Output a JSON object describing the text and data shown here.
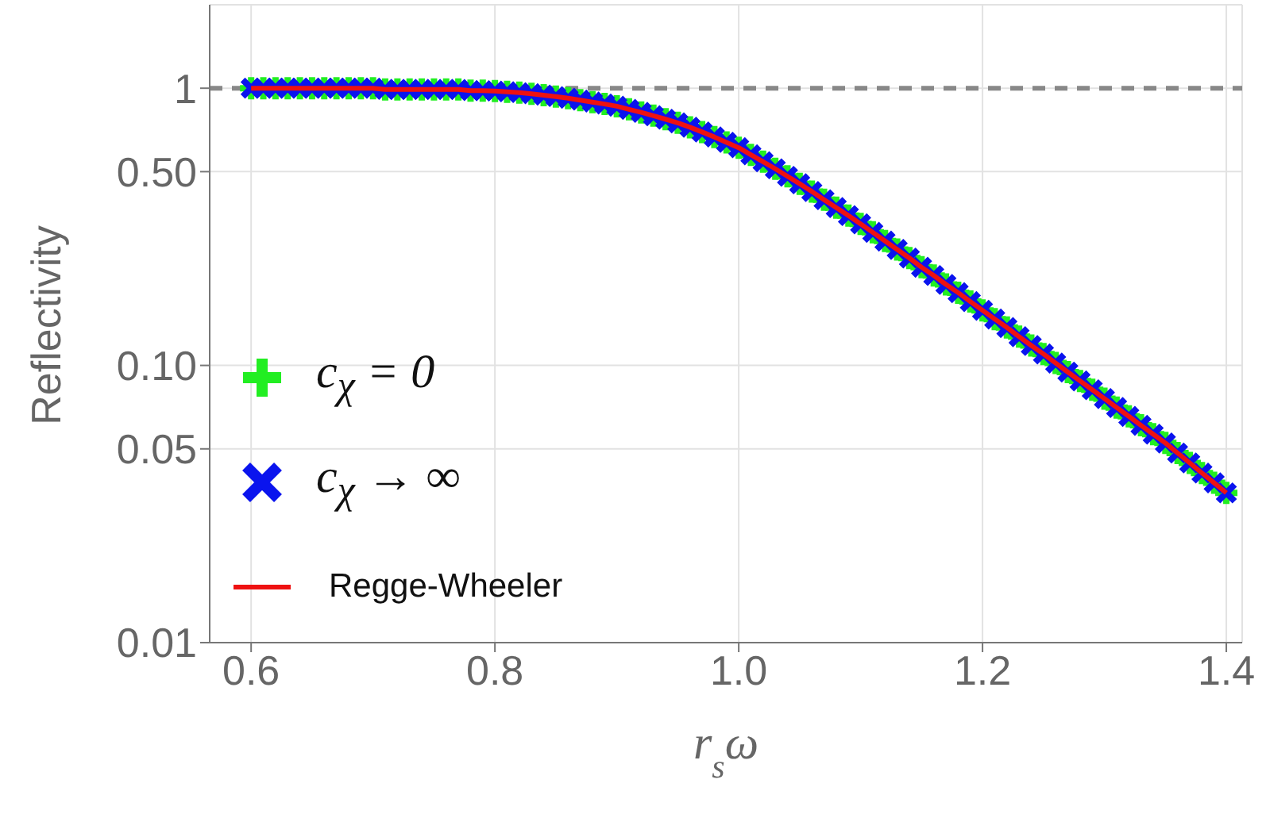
{
  "chart_data": {
    "type": "line",
    "xlabel": "r$_{s}$ω",
    "ylabel": "Reflectivity",
    "x": [
      0.6,
      0.61,
      0.62,
      0.63,
      0.64,
      0.65,
      0.66,
      0.67,
      0.68,
      0.69,
      0.7,
      0.71,
      0.72,
      0.73,
      0.74,
      0.75,
      0.76,
      0.77,
      0.78,
      0.79,
      0.8,
      0.81,
      0.82,
      0.83,
      0.84,
      0.85,
      0.86,
      0.87,
      0.88,
      0.89,
      0.9,
      0.91,
      0.92,
      0.93,
      0.94,
      0.95,
      0.96,
      0.97,
      0.98,
      0.99,
      1.0,
      1.01,
      1.02,
      1.03,
      1.04,
      1.05,
      1.06,
      1.07,
      1.08,
      1.09,
      1.1,
      1.11,
      1.12,
      1.13,
      1.14,
      1.15,
      1.16,
      1.17,
      1.18,
      1.19,
      1.2,
      1.21,
      1.22,
      1.23,
      1.24,
      1.25,
      1.26,
      1.27,
      1.28,
      1.29,
      1.3,
      1.31,
      1.32,
      1.33,
      1.34,
      1.35,
      1.36,
      1.37,
      1.38,
      1.39,
      1.4
    ],
    "series": [
      {
        "name": "c$_{χ}$ = 0",
        "type": "scatter",
        "marker": "cross",
        "color": "#22ee22",
        "values": [
          1.0,
          1.0,
          1.0,
          1.0,
          1.0,
          1.0,
          1.0,
          1.0,
          1.0,
          1.0,
          1.0,
          0.99,
          0.99,
          0.99,
          0.99,
          0.99,
          0.99,
          0.99,
          0.98,
          0.98,
          0.977,
          0.971,
          0.964,
          0.955,
          0.944,
          0.933,
          0.92,
          0.906,
          0.891,
          0.877,
          0.861,
          0.839,
          0.818,
          0.796,
          0.773,
          0.75,
          0.723,
          0.695,
          0.667,
          0.638,
          0.61,
          0.575,
          0.543,
          0.512,
          0.481,
          0.452,
          0.424,
          0.396,
          0.371,
          0.347,
          0.324,
          0.302,
          0.281,
          0.262,
          0.244,
          0.226,
          0.211,
          0.196,
          0.183,
          0.17,
          0.158,
          0.147,
          0.137,
          0.127,
          0.118,
          0.11,
          0.102,
          0.0946,
          0.0879,
          0.0817,
          0.0759,
          0.0705,
          0.0655,
          0.0608,
          0.0565,
          0.0525,
          0.0483,
          0.0445,
          0.0409,
          0.0377,
          0.0347
        ]
      },
      {
        "name": "c$_{χ}$ → ∞",
        "type": "scatter",
        "marker": "x",
        "color": "#0a14ee",
        "values": [
          1.0,
          1.0,
          1.0,
          1.0,
          1.0,
          1.0,
          1.0,
          1.0,
          1.0,
          1.0,
          1.0,
          0.99,
          0.99,
          0.99,
          0.99,
          0.99,
          0.99,
          0.99,
          0.98,
          0.98,
          0.977,
          0.971,
          0.964,
          0.955,
          0.944,
          0.933,
          0.92,
          0.906,
          0.891,
          0.877,
          0.861,
          0.839,
          0.818,
          0.796,
          0.773,
          0.75,
          0.723,
          0.695,
          0.667,
          0.638,
          0.61,
          0.575,
          0.543,
          0.512,
          0.481,
          0.452,
          0.424,
          0.396,
          0.371,
          0.347,
          0.324,
          0.302,
          0.281,
          0.262,
          0.244,
          0.226,
          0.211,
          0.196,
          0.183,
          0.17,
          0.158,
          0.147,
          0.137,
          0.127,
          0.118,
          0.11,
          0.102,
          0.0946,
          0.0879,
          0.0817,
          0.0759,
          0.0705,
          0.0655,
          0.0608,
          0.0565,
          0.0525,
          0.0483,
          0.0445,
          0.0409,
          0.0377,
          0.0347
        ]
      },
      {
        "name": "Regge-Wheeler",
        "type": "line",
        "marker": "none",
        "line_style": "solid",
        "color": "#ee1111",
        "values": [
          1.0,
          1.0,
          1.0,
          1.0,
          1.0,
          1.0,
          1.0,
          1.0,
          1.0,
          1.0,
          1.0,
          0.99,
          0.99,
          0.99,
          0.99,
          0.99,
          0.99,
          0.99,
          0.98,
          0.98,
          0.977,
          0.971,
          0.964,
          0.955,
          0.944,
          0.933,
          0.92,
          0.906,
          0.891,
          0.877,
          0.861,
          0.839,
          0.818,
          0.796,
          0.773,
          0.75,
          0.723,
          0.695,
          0.667,
          0.638,
          0.61,
          0.575,
          0.543,
          0.512,
          0.481,
          0.452,
          0.424,
          0.396,
          0.371,
          0.347,
          0.324,
          0.302,
          0.281,
          0.262,
          0.244,
          0.226,
          0.211,
          0.196,
          0.183,
          0.17,
          0.158,
          0.147,
          0.137,
          0.127,
          0.118,
          0.11,
          0.102,
          0.0946,
          0.0879,
          0.0817,
          0.0759,
          0.0705,
          0.0655,
          0.0608,
          0.0565,
          0.0525,
          0.0483,
          0.0445,
          0.0409,
          0.0377,
          0.0347
        ]
      }
    ],
    "xlim": [
      0.566,
      1.413
    ],
    "xticks": [
      {
        "value": 0.6,
        "label": "0.6"
      },
      {
        "value": 0.8,
        "label": "0.8"
      },
      {
        "value": 1.0,
        "label": "1.0"
      },
      {
        "value": 1.2,
        "label": "1.2"
      },
      {
        "value": 1.4,
        "label": "1.4"
      }
    ],
    "ylim": [
      0.01,
      2
    ],
    "yticks": [
      0.01,
      0.05,
      {
        "value": 0.1,
        "label": "0.10"
      },
      {
        "value": 0.5,
        "label": "0.50"
      },
      1
    ],
    "log": "y",
    "grid": true,
    "legend": "left",
    "ref_lines": [
      {
        "axis": "y",
        "value": 1,
        "color": "#888888",
        "line_style": "dashed"
      }
    ]
  }
}
